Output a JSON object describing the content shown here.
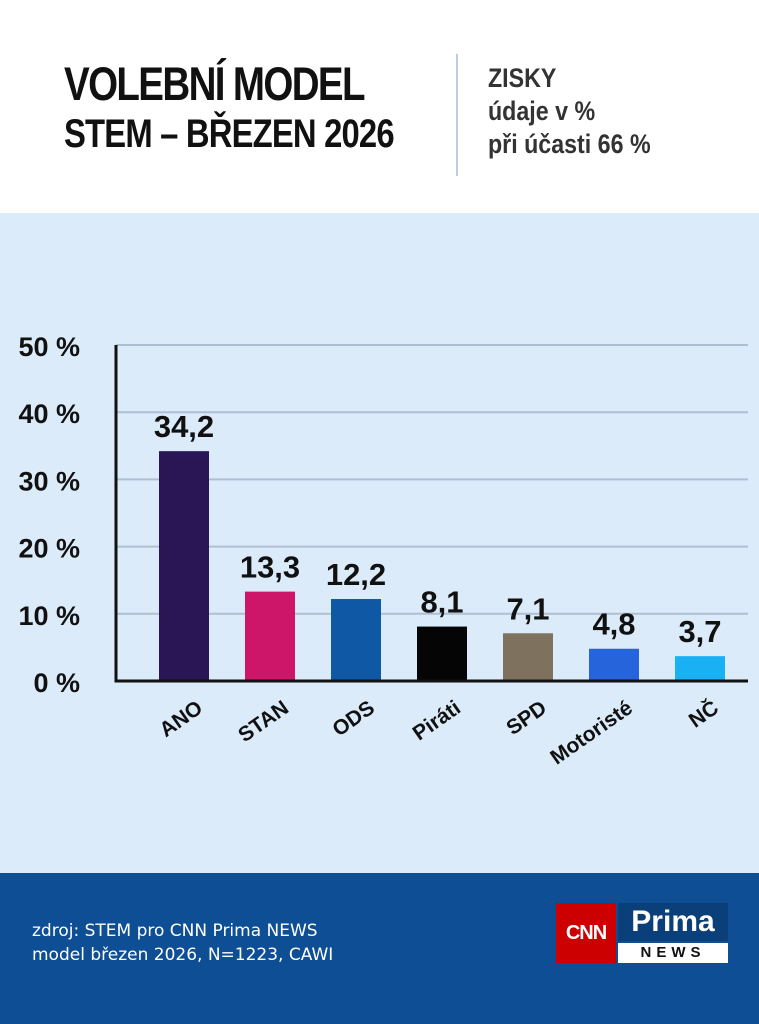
{
  "header": {
    "title_line1": "VOLEBNÍ MODEL",
    "title_line2": "STEM – BŘEZEN 2026",
    "subtitle_line1": "ZISKY",
    "subtitle_line2": "údaje v %",
    "subtitle_line3": "při účasti 66 %"
  },
  "chart_data": {
    "type": "bar",
    "categories": [
      "ANO",
      "STAN",
      "ODS",
      "Piráti",
      "SPD",
      "Motoristé",
      "NČ"
    ],
    "values": [
      34.2,
      13.3,
      12.2,
      8.1,
      7.1,
      4.8,
      3.7
    ],
    "value_labels": [
      "34,2",
      "13,3",
      "12,2",
      "8,1",
      "7,1",
      "4,8",
      "3,7"
    ],
    "colors": [
      "#2a1654",
      "#cd1569",
      "#0e58a6",
      "#050505",
      "#7e725e",
      "#2664db",
      "#19b1f3"
    ],
    "ylim": [
      0,
      50
    ],
    "yticks": [
      0,
      10,
      20,
      30,
      40,
      50
    ],
    "ytick_labels": [
      "0 %",
      "10 %",
      "20 %",
      "30 %",
      "40 %",
      "50 %"
    ],
    "grid": true
  },
  "footer": {
    "source_line1": "zdroj: STEM pro CNN Prima NEWS",
    "source_line2": "model březen 2026, N=1223, CAWI",
    "logo_cnn": "CNN",
    "logo_prima": "Prima",
    "logo_news": "NEWS"
  }
}
